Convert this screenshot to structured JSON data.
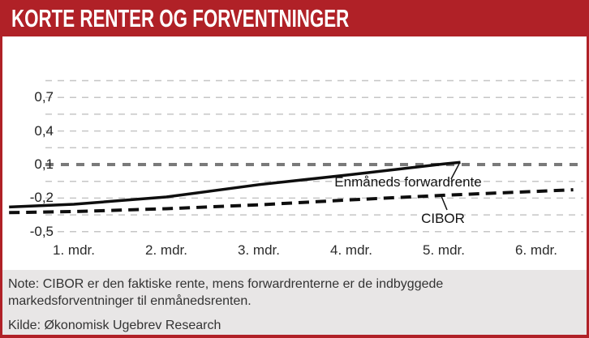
{
  "banner": {
    "title": "KORTE RENTER OG FORVENTNINGER"
  },
  "colors": {
    "banner_red": "#b02127",
    "border_red": "#b02127",
    "footer_gray": "#e8e6e6",
    "grid_minor": "#c6c6c6",
    "grid_bold": "#7a7a7a",
    "line_black": "#0e0e0e"
  },
  "chart_data": {
    "type": "line",
    "x_categories": [
      "1. mdr.",
      "2. mdr.",
      "3. mdr.",
      "4. mdr.",
      "5. mdr.",
      "6. mdr."
    ],
    "xlabel": "",
    "ylabel": "",
    "y_ticks": [
      {
        "label": "0,7",
        "value": 0.7
      },
      {
        "label": "0,4",
        "value": 0.4
      },
      {
        "label": "0,1",
        "value": 0.1
      },
      {
        "label": "-0,2",
        "value": -0.2
      },
      {
        "label": "-0,5",
        "value": -0.5
      }
    ],
    "gridline_values": [
      0.85,
      0.7,
      0.55,
      0.4,
      0.25,
      0.1,
      -0.05,
      -0.2,
      -0.35,
      -0.5
    ],
    "bold_gridline_value": 0.1,
    "ylim": [
      -0.5,
      0.85
    ],
    "grid": true,
    "legend_position": "inline-annotations",
    "series": [
      {
        "name": "Enmåneds forwardrente",
        "style": "solid",
        "x": [
          0.3,
          1,
          2,
          3,
          4,
          5,
          5.18
        ],
        "values": [
          -0.28,
          -0.255,
          -0.19,
          -0.08,
          0.01,
          0.105,
          0.12
        ]
      },
      {
        "name": "CIBOR",
        "style": "dashed",
        "x": [
          0.3,
          1,
          2,
          3,
          4,
          5,
          6,
          6.4
        ],
        "values": [
          -0.33,
          -0.32,
          -0.295,
          -0.26,
          -0.215,
          -0.175,
          -0.14,
          -0.125
        ]
      }
    ]
  },
  "note": {
    "line1": "Note: CIBOR er den faktiske rente, mens forwardrenterne er de indbyggede",
    "line2": "markedsforventninger til enmånedsrenten."
  },
  "source": "Kilde: Økonomisk Ugebrev Research"
}
